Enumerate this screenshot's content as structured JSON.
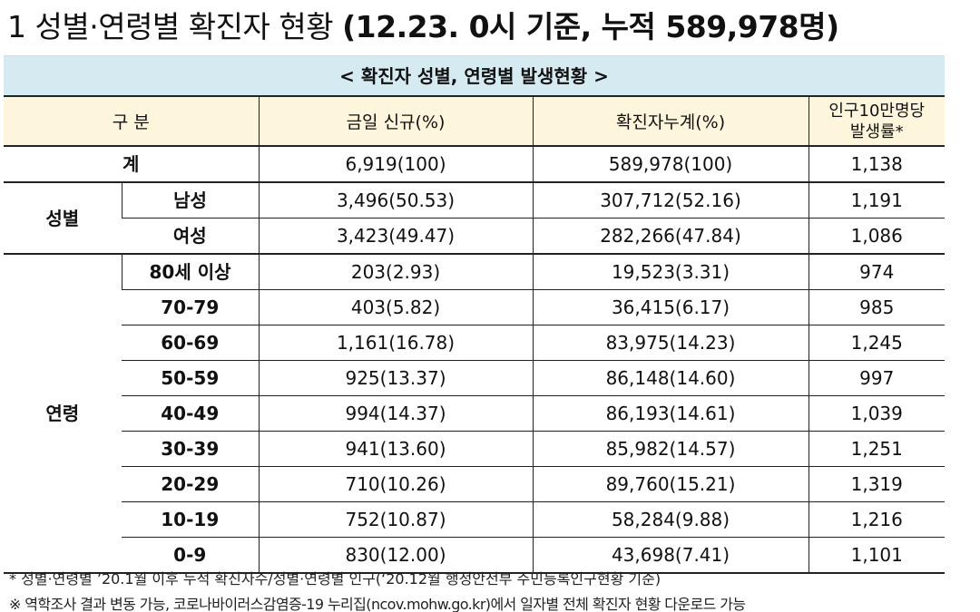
{
  "title": {
    "number": "1",
    "main": "성별·연령별 확진자 현황",
    "paren": "(12.23. 0시 기준, 누적 589,978명)"
  },
  "table": {
    "caption": "< 확진자 성별, 연령별 발생현황 >",
    "headers": {
      "category": "구 분",
      "today_new": "금일 신규(%)",
      "cumulative": "확진자누계(%)",
      "rate_line1": "인구10만명당",
      "rate_line2": "발생률*"
    },
    "total": {
      "label": "계",
      "today": "6,919(100)",
      "cumulative": "589,978(100)",
      "rate": "1,138"
    },
    "sex": {
      "group": "성별",
      "rows": [
        {
          "label": "남성",
          "today": "3,496(50.53)",
          "cumulative": "307,712(52.16)",
          "rate": "1,191"
        },
        {
          "label": "여성",
          "today": "3,423(49.47)",
          "cumulative": "282,266(47.84)",
          "rate": "1,086"
        }
      ]
    },
    "age": {
      "group": "연령",
      "rows": [
        {
          "label": "80세 이상",
          "today": "203(2.93)",
          "cumulative": "19,523(3.31)",
          "rate": "974"
        },
        {
          "label": "70-79",
          "today": "403(5.82)",
          "cumulative": "36,415(6.17)",
          "rate": "985"
        },
        {
          "label": "60-69",
          "today": "1,161(16.78)",
          "cumulative": "83,975(14.23)",
          "rate": "1,245"
        },
        {
          "label": "50-59",
          "today": "925(13.37)",
          "cumulative": "86,148(14.60)",
          "rate": "997"
        },
        {
          "label": "40-49",
          "today": "994(14.37)",
          "cumulative": "86,193(14.61)",
          "rate": "1,039"
        },
        {
          "label": "30-39",
          "today": "941(13.60)",
          "cumulative": "85,982(14.57)",
          "rate": "1,251"
        },
        {
          "label": "20-29",
          "today": "710(10.26)",
          "cumulative": "89,760(15.21)",
          "rate": "1,319"
        },
        {
          "label": "10-19",
          "today": "752(10.87)",
          "cumulative": "58,284(9.88)",
          "rate": "1,216"
        },
        {
          "label": "0-9",
          "today": "830(12.00)",
          "cumulative": "43,698(7.41)",
          "rate": "1,101"
        }
      ]
    }
  },
  "notes": {
    "note1": "* 성별·연령별 ’20.1월 이후 누적 확진자수/성별·연령별 인구(‘20.12월 행정안전부 주민등록인구현황 기준)",
    "note2": "※ 역학조사 결과 변동 가능, 코로나바이러스감염증-19 누리집(ncov.mohw.go.kr)에서 일자별 전체 확진자 현황 다운로드 가능"
  }
}
